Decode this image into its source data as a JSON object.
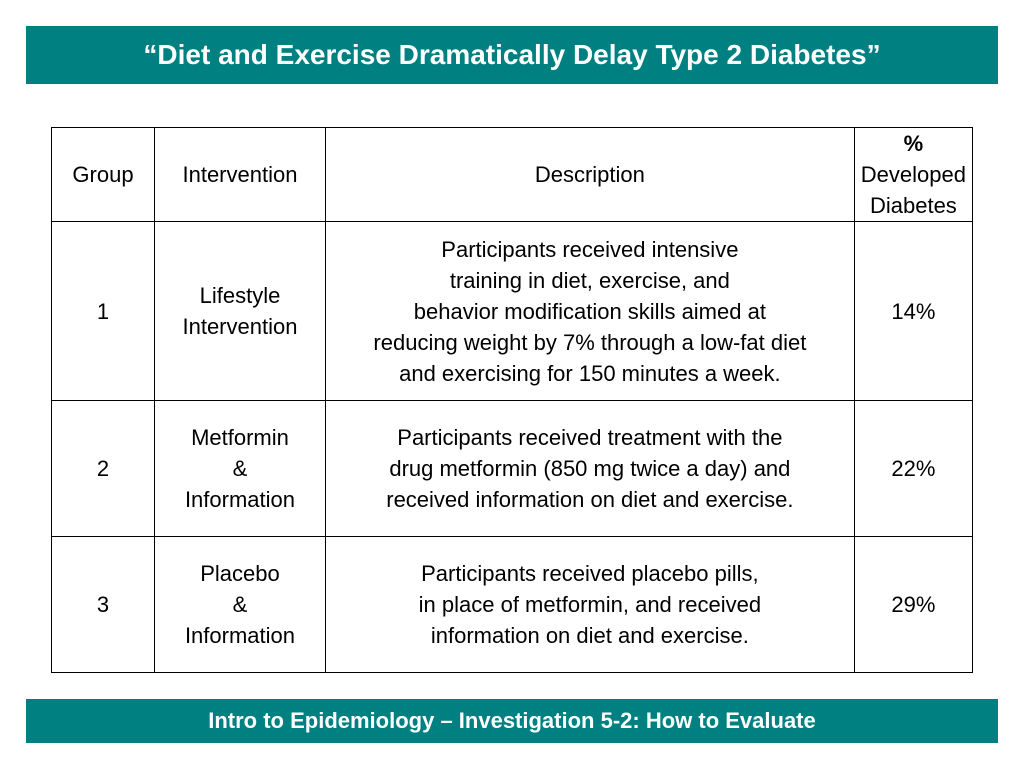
{
  "title": "“Diet and Exercise Dramatically Delay Type 2 Diabetes”",
  "table": {
    "headers": {
      "group": "Group",
      "intervention": "Intervention",
      "description": "Description",
      "pct_symbol": "%",
      "pct_label": "Developed\nDiabetes"
    },
    "rows": [
      {
        "group": "1",
        "intervention": "Lifestyle\nIntervention",
        "description": "Participants received intensive\ntraining in diet, exercise, and\nbehavior modification skills aimed at\nreducing weight by 7% through a low-fat diet\nand exercising for 150 minutes a week.",
        "percent": "14%"
      },
      {
        "group": "2",
        "intervention": "Metformin\n&\nInformation",
        "description": "Participants received treatment with the\ndrug metformin (850 mg twice a day) and\nreceived information on diet and exercise.",
        "percent": "22%"
      },
      {
        "group": "3",
        "intervention": "Placebo\n&\nInformation",
        "description": "Participants received placebo pills,\nin place of metformin, and received\ninformation on diet and exercise.",
        "percent": "29%"
      }
    ]
  },
  "footer": "Intro to Epidemiology – Investigation 5-2:  How to Evaluate",
  "colors": {
    "banner": "#008080",
    "banner_text": "#ffffff"
  }
}
